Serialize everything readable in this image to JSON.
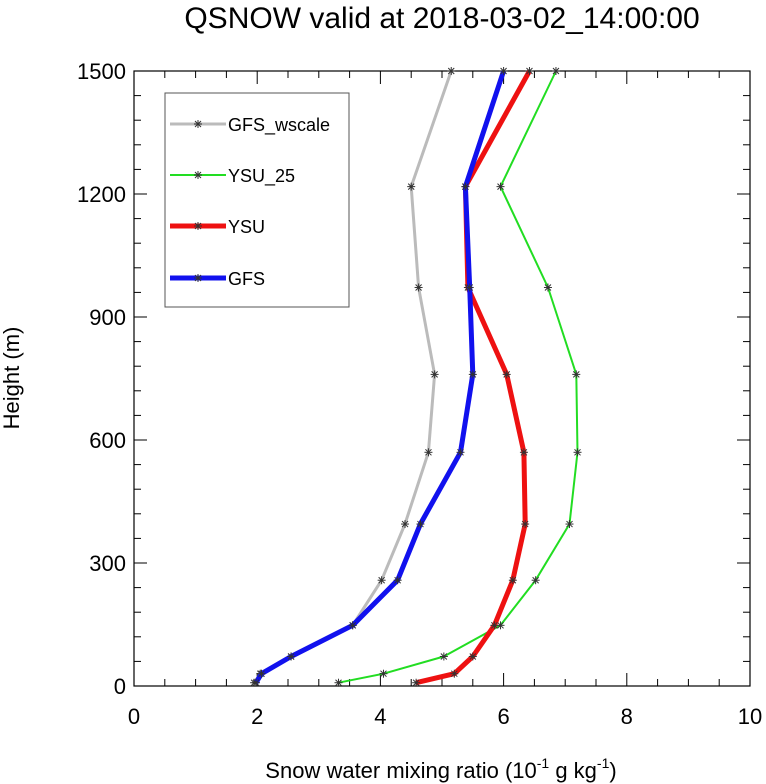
{
  "chart_data": {
    "type": "line",
    "title": "QSNOW valid at 2018-03-02_14:00:00",
    "xlabel": "Snow water mixing ratio (10",
    "xlabel_sup1": "-1",
    "xlabel_mid": " g kg",
    "xlabel_sup2": "-1",
    "xlabel_end": ")",
    "ylabel": "Height (m)",
    "xlim": [
      0,
      10
    ],
    "ylim": [
      0,
      1500
    ],
    "xticks": [
      0,
      2,
      4,
      6,
      8,
      10
    ],
    "yticks": [
      0,
      300,
      600,
      900,
      1200,
      1500
    ],
    "xtick_labels": [
      "0",
      "2",
      "4",
      "6",
      "8",
      "10"
    ],
    "ytick_labels": [
      "0",
      "300",
      "600",
      "900",
      "1200",
      "1500"
    ],
    "grid": false,
    "legend_position": "top-left",
    "series": [
      {
        "name": "GFS_wscale",
        "color": "#bbbbbb",
        "width": 3,
        "points": [
          [
            1.95,
            8
          ],
          [
            2.05,
            30
          ],
          [
            2.55,
            72
          ],
          [
            3.55,
            148
          ],
          [
            4.02,
            258
          ],
          [
            4.4,
            395
          ],
          [
            4.78,
            570
          ],
          [
            4.88,
            760
          ],
          [
            4.62,
            972
          ],
          [
            4.5,
            1218
          ],
          [
            5.15,
            1500
          ]
        ]
      },
      {
        "name": "YSU_25",
        "color": "#22dd22",
        "width": 2,
        "points": [
          [
            3.32,
            8
          ],
          [
            4.05,
            30
          ],
          [
            5.03,
            72
          ],
          [
            5.95,
            148
          ],
          [
            6.52,
            258
          ],
          [
            7.07,
            395
          ],
          [
            7.2,
            570
          ],
          [
            7.18,
            760
          ],
          [
            6.72,
            972
          ],
          [
            5.95,
            1218
          ],
          [
            6.85,
            1500
          ]
        ]
      },
      {
        "name": "YSU",
        "color": "#ee1111",
        "width": 5,
        "points": [
          [
            4.58,
            8
          ],
          [
            5.2,
            30
          ],
          [
            5.5,
            72
          ],
          [
            5.85,
            148
          ],
          [
            6.15,
            258
          ],
          [
            6.35,
            395
          ],
          [
            6.33,
            570
          ],
          [
            6.05,
            760
          ],
          [
            5.42,
            972
          ],
          [
            5.38,
            1218
          ],
          [
            6.42,
            1500
          ]
        ]
      },
      {
        "name": "GFS",
        "color": "#1111ee",
        "width": 5,
        "points": [
          [
            1.98,
            8
          ],
          [
            2.07,
            30
          ],
          [
            2.55,
            72
          ],
          [
            3.55,
            148
          ],
          [
            4.28,
            258
          ],
          [
            4.65,
            395
          ],
          [
            5.3,
            570
          ],
          [
            5.5,
            760
          ],
          [
            5.45,
            972
          ],
          [
            5.38,
            1218
          ],
          [
            6.0,
            1500
          ]
        ]
      }
    ]
  }
}
